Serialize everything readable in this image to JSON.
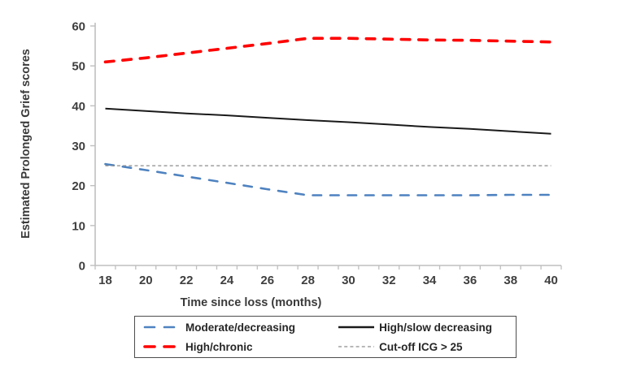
{
  "chart_data": {
    "type": "line",
    "title": "",
    "xlabel": "Time since loss (months)",
    "ylabel": "Estimated Prolonged Grief scores",
    "x": [
      18,
      20,
      22,
      24,
      26,
      28,
      30,
      32,
      34,
      36,
      38,
      40
    ],
    "xlim": [
      18,
      40
    ],
    "ylim": [
      0,
      60
    ],
    "xticklabels": [
      "18",
      "20",
      "22",
      "24",
      "26",
      "28",
      "30",
      "32",
      "34",
      "36",
      "38",
      "40"
    ],
    "yticklabels": [
      "0",
      "10",
      "20",
      "30",
      "40",
      "50",
      "60"
    ],
    "grid": false,
    "legend_position": "bottom",
    "series": [
      {
        "name": "Moderate/decreasing",
        "color": "#4E82C0",
        "style": "dashed",
        "width": 2.6,
        "values": [
          25.4,
          23.9,
          22.3,
          20.7,
          19.1,
          17.6,
          17.6,
          17.6,
          17.6,
          17.6,
          17.7,
          17.7
        ]
      },
      {
        "name": "High/slow decreasing",
        "color": "#1a1a1a",
        "style": "solid",
        "width": 2,
        "values": [
          39.3,
          38.7,
          38.1,
          37.6,
          37.0,
          36.4,
          35.9,
          35.3,
          34.7,
          34.2,
          33.6,
          33.0
        ]
      },
      {
        "name": "High/chronic",
        "color": "#FF0000",
        "style": "dashed",
        "width": 3.6,
        "values": [
          51.0,
          52.0,
          53.2,
          54.4,
          55.6,
          56.9,
          56.9,
          56.7,
          56.5,
          56.4,
          56.2,
          56.0
        ]
      },
      {
        "name": "Cut-off ICG > 25",
        "color": "#8c8c8c",
        "style": "dotted",
        "width": 1.3,
        "values": [
          25,
          25,
          25,
          25,
          25,
          25,
          25,
          25,
          25,
          25,
          25,
          25
        ]
      }
    ],
    "axis_color": "#bfbfbf"
  }
}
